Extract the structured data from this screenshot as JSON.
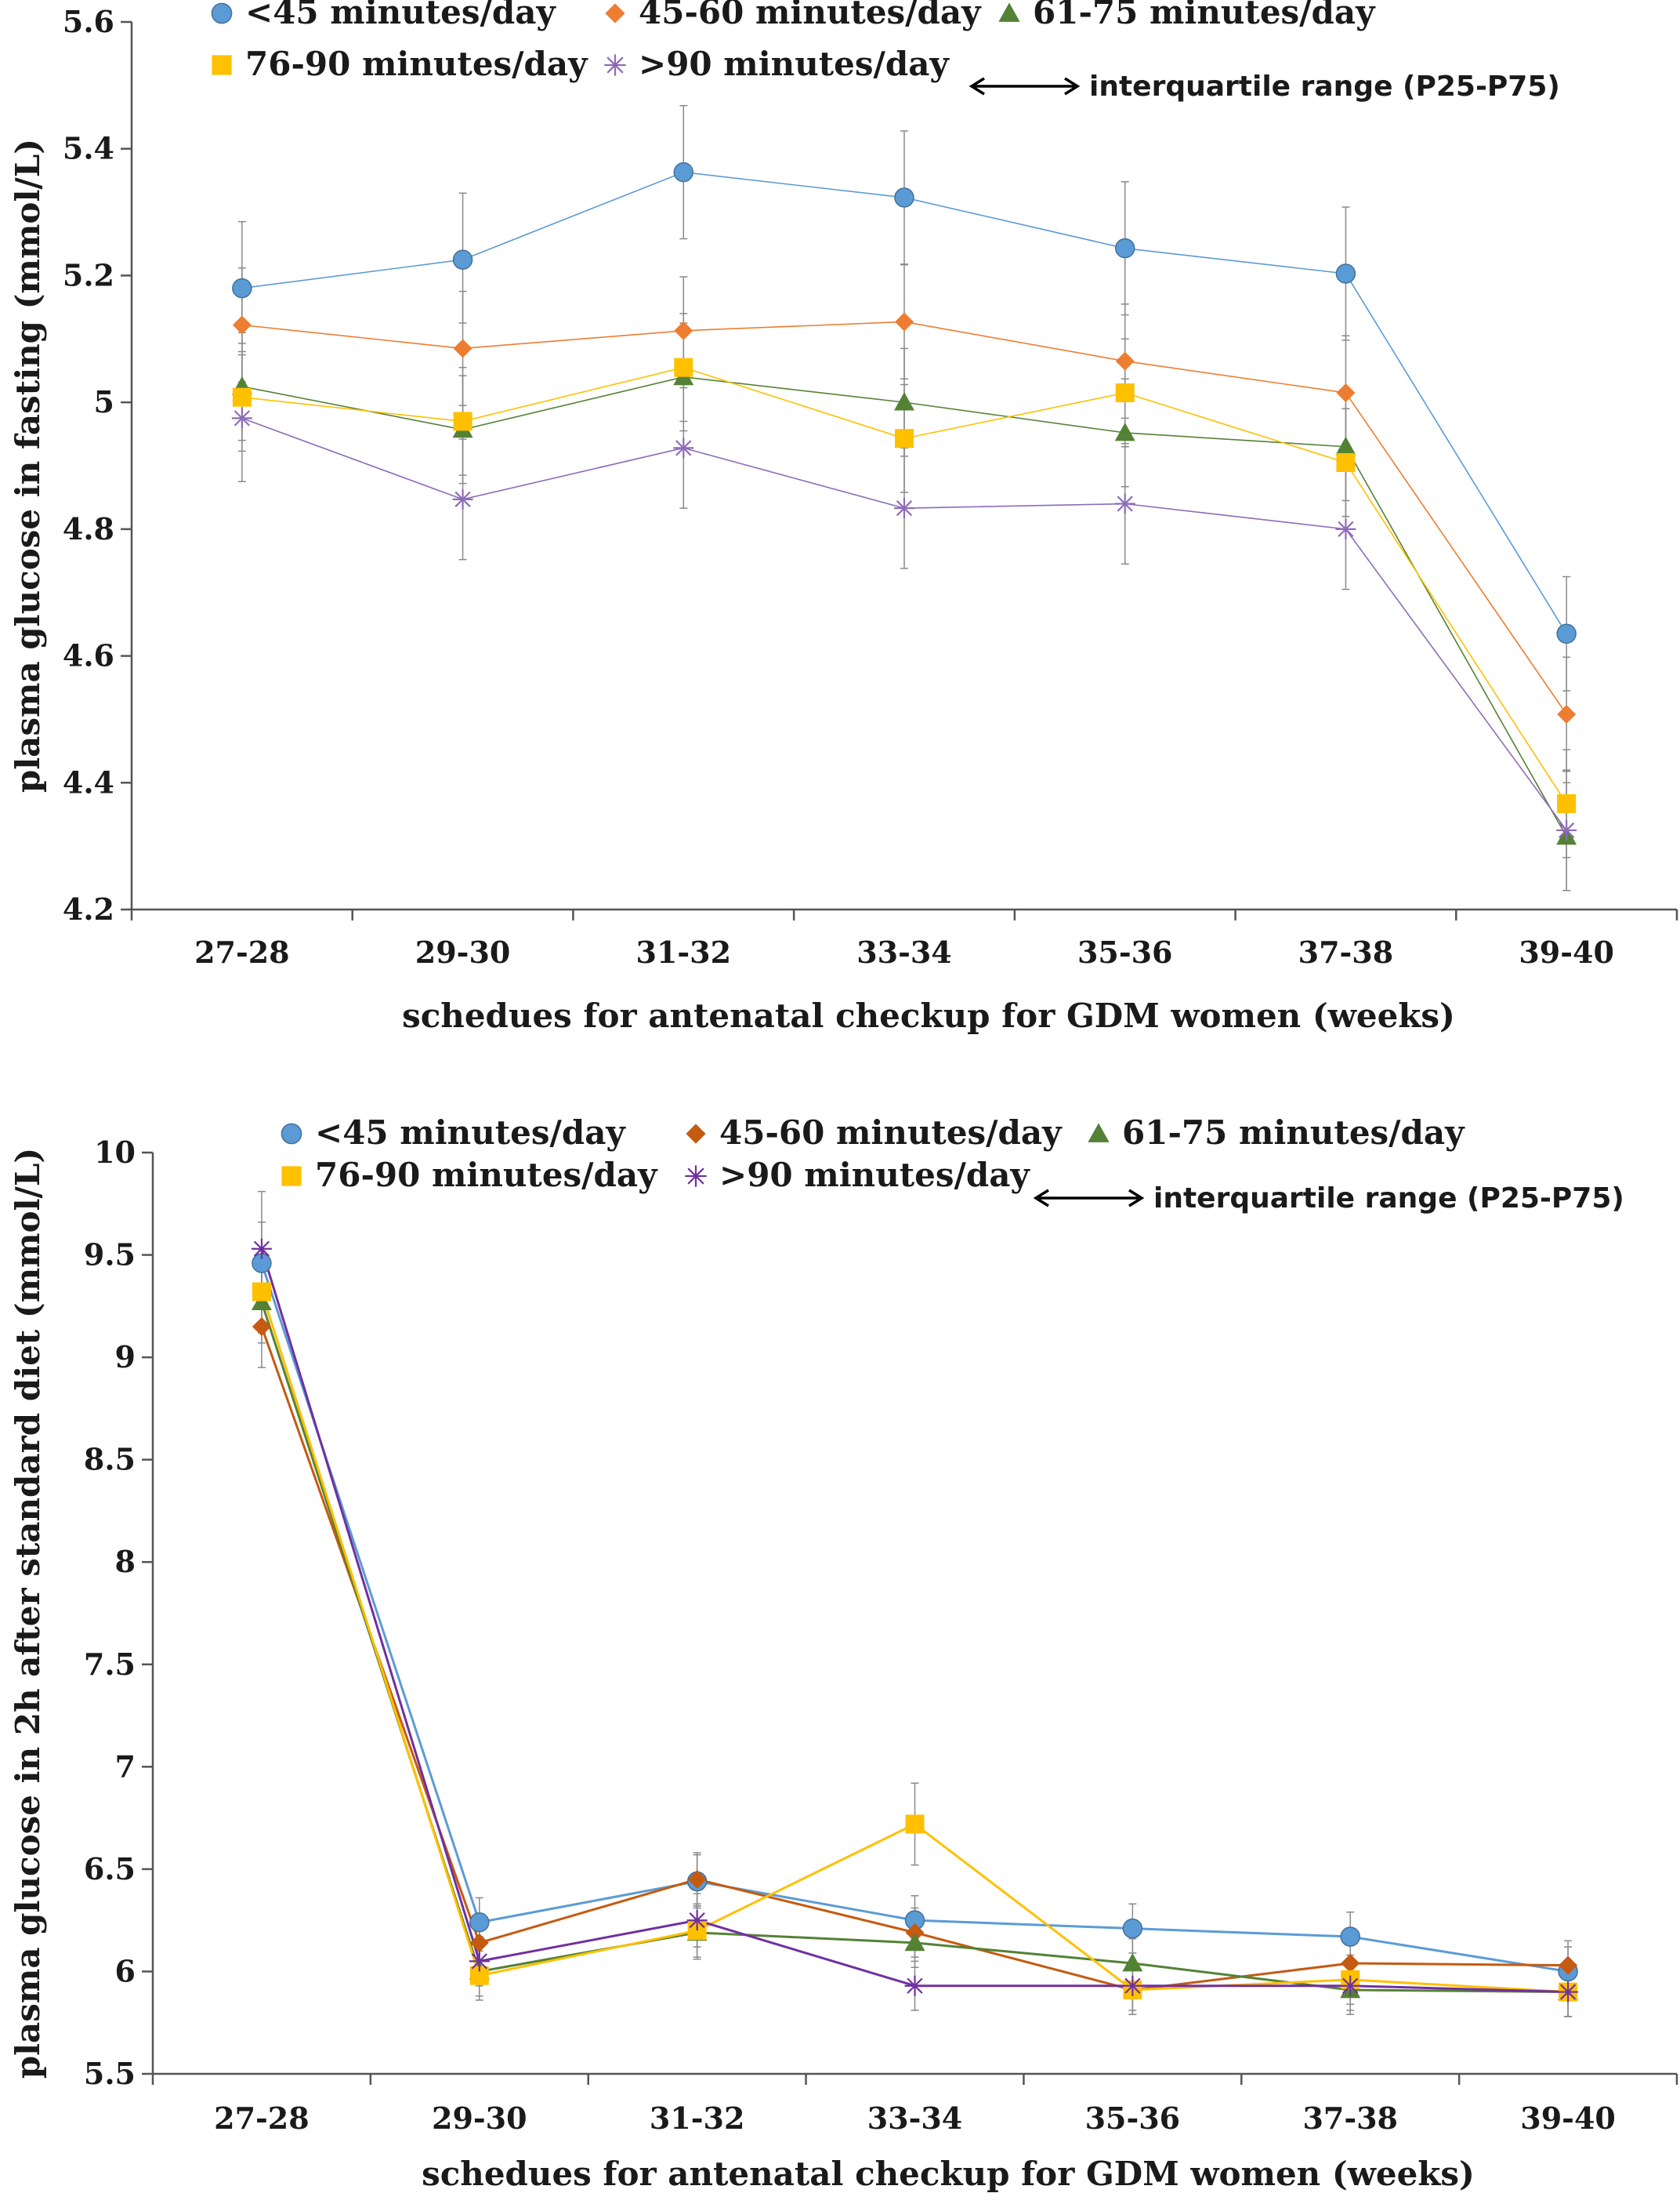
{
  "chart_data": [
    {
      "type": "line",
      "title": "",
      "xlabel": "schedues for antenatal checkup for GDM women (weeks)",
      "ylabel": "plasma glucose in fasting (mmol/L)",
      "categories": [
        "27-28",
        "29-30",
        "31-32",
        "33-34",
        "35-36",
        "37-38",
        "39-40"
      ],
      "ylim": [
        4.2,
        5.6
      ],
      "yticks": [
        4.2,
        4.4,
        4.6,
        4.8,
        5,
        5.2,
        5.4,
        5.6
      ],
      "ytick_labels": [
        "4.2",
        "4.4",
        "4.6",
        "4.8",
        "5",
        "5.2",
        "5.4",
        "5.6"
      ],
      "legend_note": "interquartile range (P25-P75)",
      "series": [
        {
          "name": "<45 minutes/day",
          "marker": "circle",
          "color": "#5B9BD5",
          "values": [
            5.18,
            5.225,
            5.363,
            5.323,
            5.243,
            5.203,
            4.635
          ],
          "err_low": [
            0.1,
            0.1,
            0.105,
            0.105,
            0.105,
            0.105,
            0.09
          ],
          "err_high": [
            0.105,
            0.105,
            0.105,
            0.105,
            0.105,
            0.105,
            0.09
          ]
        },
        {
          "name": "45-60 minutes/day",
          "marker": "diamond",
          "color": "#ED7D31",
          "values": [
            5.122,
            5.085,
            5.113,
            5.127,
            5.065,
            5.015,
            4.508
          ],
          "err_low": [
            0.09,
            0.09,
            0.085,
            0.09,
            0.09,
            0.09,
            0.09
          ],
          "err_high": [
            0.09,
            0.09,
            0.085,
            0.09,
            0.09,
            0.09,
            0.09
          ]
        },
        {
          "name": "61-75 minutes/day",
          "marker": "triangle",
          "color": "#548235",
          "values": [
            5.025,
            4.957,
            5.04,
            5.0,
            4.952,
            4.93,
            4.315
          ],
          "err_low": [
            0.085,
            0.085,
            0.085,
            0.085,
            0.085,
            0.085,
            0.085
          ],
          "err_high": [
            0.085,
            0.085,
            0.085,
            0.085,
            0.085,
            0.085,
            0.085
          ]
        },
        {
          "name": "76-90 minutes/day",
          "marker": "square",
          "color": "#FFC000",
          "values": [
            5.008,
            4.97,
            5.055,
            4.943,
            5.015,
            4.905,
            4.367
          ],
          "err_low": [
            0.085,
            0.085,
            0.085,
            0.085,
            0.085,
            0.085,
            0.085
          ],
          "err_high": [
            0.085,
            0.085,
            0.085,
            0.085,
            0.085,
            0.085,
            0.085
          ]
        },
        {
          "name": ">90 minutes/day",
          "marker": "star",
          "color": "#8E6BB8",
          "values": [
            4.975,
            4.847,
            4.928,
            4.833,
            4.84,
            4.8,
            4.325
          ],
          "err_low": [
            0.1,
            0.095,
            0.095,
            0.095,
            0.095,
            0.095,
            0.095
          ],
          "err_high": [
            0.1,
            0.095,
            0.095,
            0.095,
            0.095,
            0.095,
            0.095
          ]
        }
      ]
    },
    {
      "type": "line",
      "title": "",
      "xlabel": "schedues for antenatal checkup for GDM women (weeks)",
      "ylabel": "plasma glucose in 2h after standard diet (mmol/L)",
      "categories": [
        "27-28",
        "29-30",
        "31-32",
        "33-34",
        "35-36",
        "37-38",
        "39-40"
      ],
      "ylim": [
        5.5,
        10
      ],
      "yticks": [
        5.5,
        6,
        6.5,
        7,
        7.5,
        8,
        8.5,
        9,
        9.5,
        10
      ],
      "ytick_labels": [
        "5.5",
        "6",
        "6.5",
        "7",
        "7.5",
        "8",
        "8.5",
        "9",
        "9.5",
        "10"
      ],
      "legend_note": "interquartile range (P25-P75)",
      "series": [
        {
          "name": "<45 minutes/day",
          "marker": "circle",
          "color": "#5B9BD5",
          "values": [
            9.46,
            6.24,
            6.44,
            6.25,
            6.21,
            6.17,
            6.0
          ],
          "err_low": [
            0.2,
            0.12,
            0.13,
            0.12,
            0.12,
            0.12,
            0.12
          ],
          "err_high": [
            0.2,
            0.12,
            0.13,
            0.12,
            0.12,
            0.12,
            0.12
          ]
        },
        {
          "name": "45-60 minutes/day",
          "marker": "diamond",
          "color": "#C55A11",
          "values": [
            9.15,
            6.14,
            6.45,
            6.19,
            5.91,
            6.04,
            6.03
          ],
          "err_low": [
            0.2,
            0.12,
            0.13,
            0.12,
            0.12,
            0.12,
            0.12
          ],
          "err_high": [
            0.2,
            0.12,
            0.13,
            0.12,
            0.12,
            0.12,
            0.12
          ]
        },
        {
          "name": "61-75 minutes/day",
          "marker": "triangle",
          "color": "#548235",
          "values": [
            9.27,
            6.0,
            6.19,
            6.14,
            6.04,
            5.91,
            5.9
          ],
          "err_low": [
            0.2,
            0.12,
            0.13,
            0.12,
            0.12,
            0.12,
            0.12
          ],
          "err_high": [
            0.2,
            0.12,
            0.13,
            0.12,
            0.12,
            0.12,
            0.12
          ]
        },
        {
          "name": "76-90 minutes/day",
          "marker": "square",
          "color": "#FFC000",
          "values": [
            9.32,
            5.98,
            6.2,
            6.72,
            5.91,
            5.96,
            5.9
          ],
          "err_low": [
            0.2,
            0.12,
            0.13,
            0.2,
            0.12,
            0.12,
            0.12
          ],
          "err_high": [
            0.2,
            0.12,
            0.13,
            0.2,
            0.12,
            0.12,
            0.12
          ]
        },
        {
          "name": ">90 minutes/day",
          "marker": "star",
          "color": "#7030A0",
          "values": [
            9.53,
            6.05,
            6.25,
            5.93,
            5.93,
            5.93,
            5.9
          ],
          "err_low": [
            0.28,
            0.12,
            0.13,
            0.12,
            0.12,
            0.12,
            0.12
          ],
          "err_high": [
            0.28,
            0.12,
            0.13,
            0.12,
            0.12,
            0.12,
            0.12
          ]
        }
      ]
    }
  ]
}
